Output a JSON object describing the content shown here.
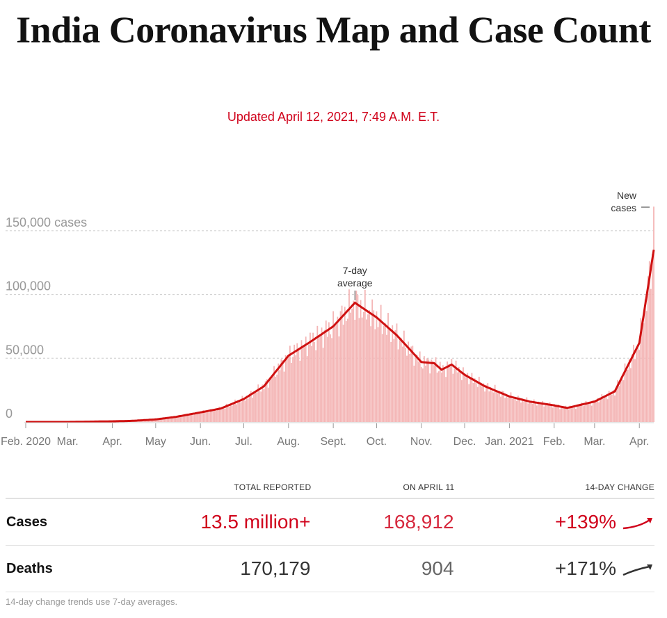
{
  "header": {
    "title": "India Coronavirus Map and Case Count",
    "updated": "Updated April 12, 2021, 7:49 A.M. E.T."
  },
  "chart_data": {
    "type": "bar",
    "ylabel_top": "150,000 cases",
    "yticks": [
      {
        "value": 0,
        "label": "0"
      },
      {
        "value": 50000,
        "label": "50,000"
      },
      {
        "value": 100000,
        "label": "100,000"
      },
      {
        "value": 150000,
        "label": "150,000 cases"
      }
    ],
    "ylim": [
      0,
      160000
    ],
    "xlim": [
      "2020-02-01",
      "2021-04-11"
    ],
    "xticks": [
      {
        "date": "2020-02-01",
        "label": "Feb. 2020"
      },
      {
        "date": "2020-03-01",
        "label": "Mar."
      },
      {
        "date": "2020-04-01",
        "label": "Apr."
      },
      {
        "date": "2020-05-01",
        "label": "May"
      },
      {
        "date": "2020-06-01",
        "label": "Jun."
      },
      {
        "date": "2020-07-01",
        "label": "Jul."
      },
      {
        "date": "2020-08-01",
        "label": "Aug."
      },
      {
        "date": "2020-09-01",
        "label": "Sept."
      },
      {
        "date": "2020-10-01",
        "label": "Oct."
      },
      {
        "date": "2020-11-01",
        "label": "Nov."
      },
      {
        "date": "2020-12-01",
        "label": "Dec."
      },
      {
        "date": "2021-01-01",
        "label": "Jan. 2021"
      },
      {
        "date": "2021-02-01",
        "label": "Feb."
      },
      {
        "date": "2021-03-01",
        "label": "Mar."
      },
      {
        "date": "2021-04-01",
        "label": "Apr."
      }
    ],
    "grid": true,
    "series": [
      {
        "name": "New cases",
        "type": "bar",
        "color": "#f4b6b6",
        "last_value": 168912
      },
      {
        "name": "7-day average",
        "type": "line",
        "color": "#cf1111",
        "points": [
          [
            "2020-02-01",
            0
          ],
          [
            "2020-03-01",
            0
          ],
          [
            "2020-04-01",
            500
          ],
          [
            "2020-04-15",
            900
          ],
          [
            "2020-05-01",
            2000
          ],
          [
            "2020-05-15",
            4000
          ],
          [
            "2020-06-01",
            7500
          ],
          [
            "2020-06-15",
            10500
          ],
          [
            "2020-07-01",
            18000
          ],
          [
            "2020-07-15",
            28000
          ],
          [
            "2020-08-01",
            52000
          ],
          [
            "2020-08-15",
            62000
          ],
          [
            "2020-09-01",
            75000
          ],
          [
            "2020-09-16",
            93500
          ],
          [
            "2020-10-01",
            82000
          ],
          [
            "2020-10-15",
            68000
          ],
          [
            "2020-11-01",
            47000
          ],
          [
            "2020-11-10",
            46000
          ],
          [
            "2020-11-15",
            41000
          ],
          [
            "2020-11-22",
            45000
          ],
          [
            "2020-12-01",
            37000
          ],
          [
            "2020-12-15",
            28000
          ],
          [
            "2021-01-01",
            20000
          ],
          [
            "2021-01-15",
            16000
          ],
          [
            "2021-02-01",
            13000
          ],
          [
            "2021-02-10",
            11000
          ],
          [
            "2021-03-01",
            16000
          ],
          [
            "2021-03-15",
            24000
          ],
          [
            "2021-04-01",
            62000
          ],
          [
            "2021-04-11",
            135000
          ]
        ]
      }
    ],
    "annotations": [
      {
        "text": "7-day average",
        "date": "2020-09-16"
      },
      {
        "text": "New cases",
        "date": "2021-04-11"
      }
    ]
  },
  "table": {
    "headers": [
      "",
      "TOTAL REPORTED",
      "ON APRIL 11",
      "14-DAY CHANGE"
    ],
    "rows": [
      {
        "label": "Cases",
        "total": "13.5 million+",
        "day": "168,912",
        "change": "+139%",
        "trend_color": "#d0021b"
      },
      {
        "label": "Deaths",
        "total": "170,179",
        "day": "904",
        "change": "+171%",
        "trend_color": "#333333"
      }
    ],
    "note": "14-day change trends use 7-day averages."
  }
}
